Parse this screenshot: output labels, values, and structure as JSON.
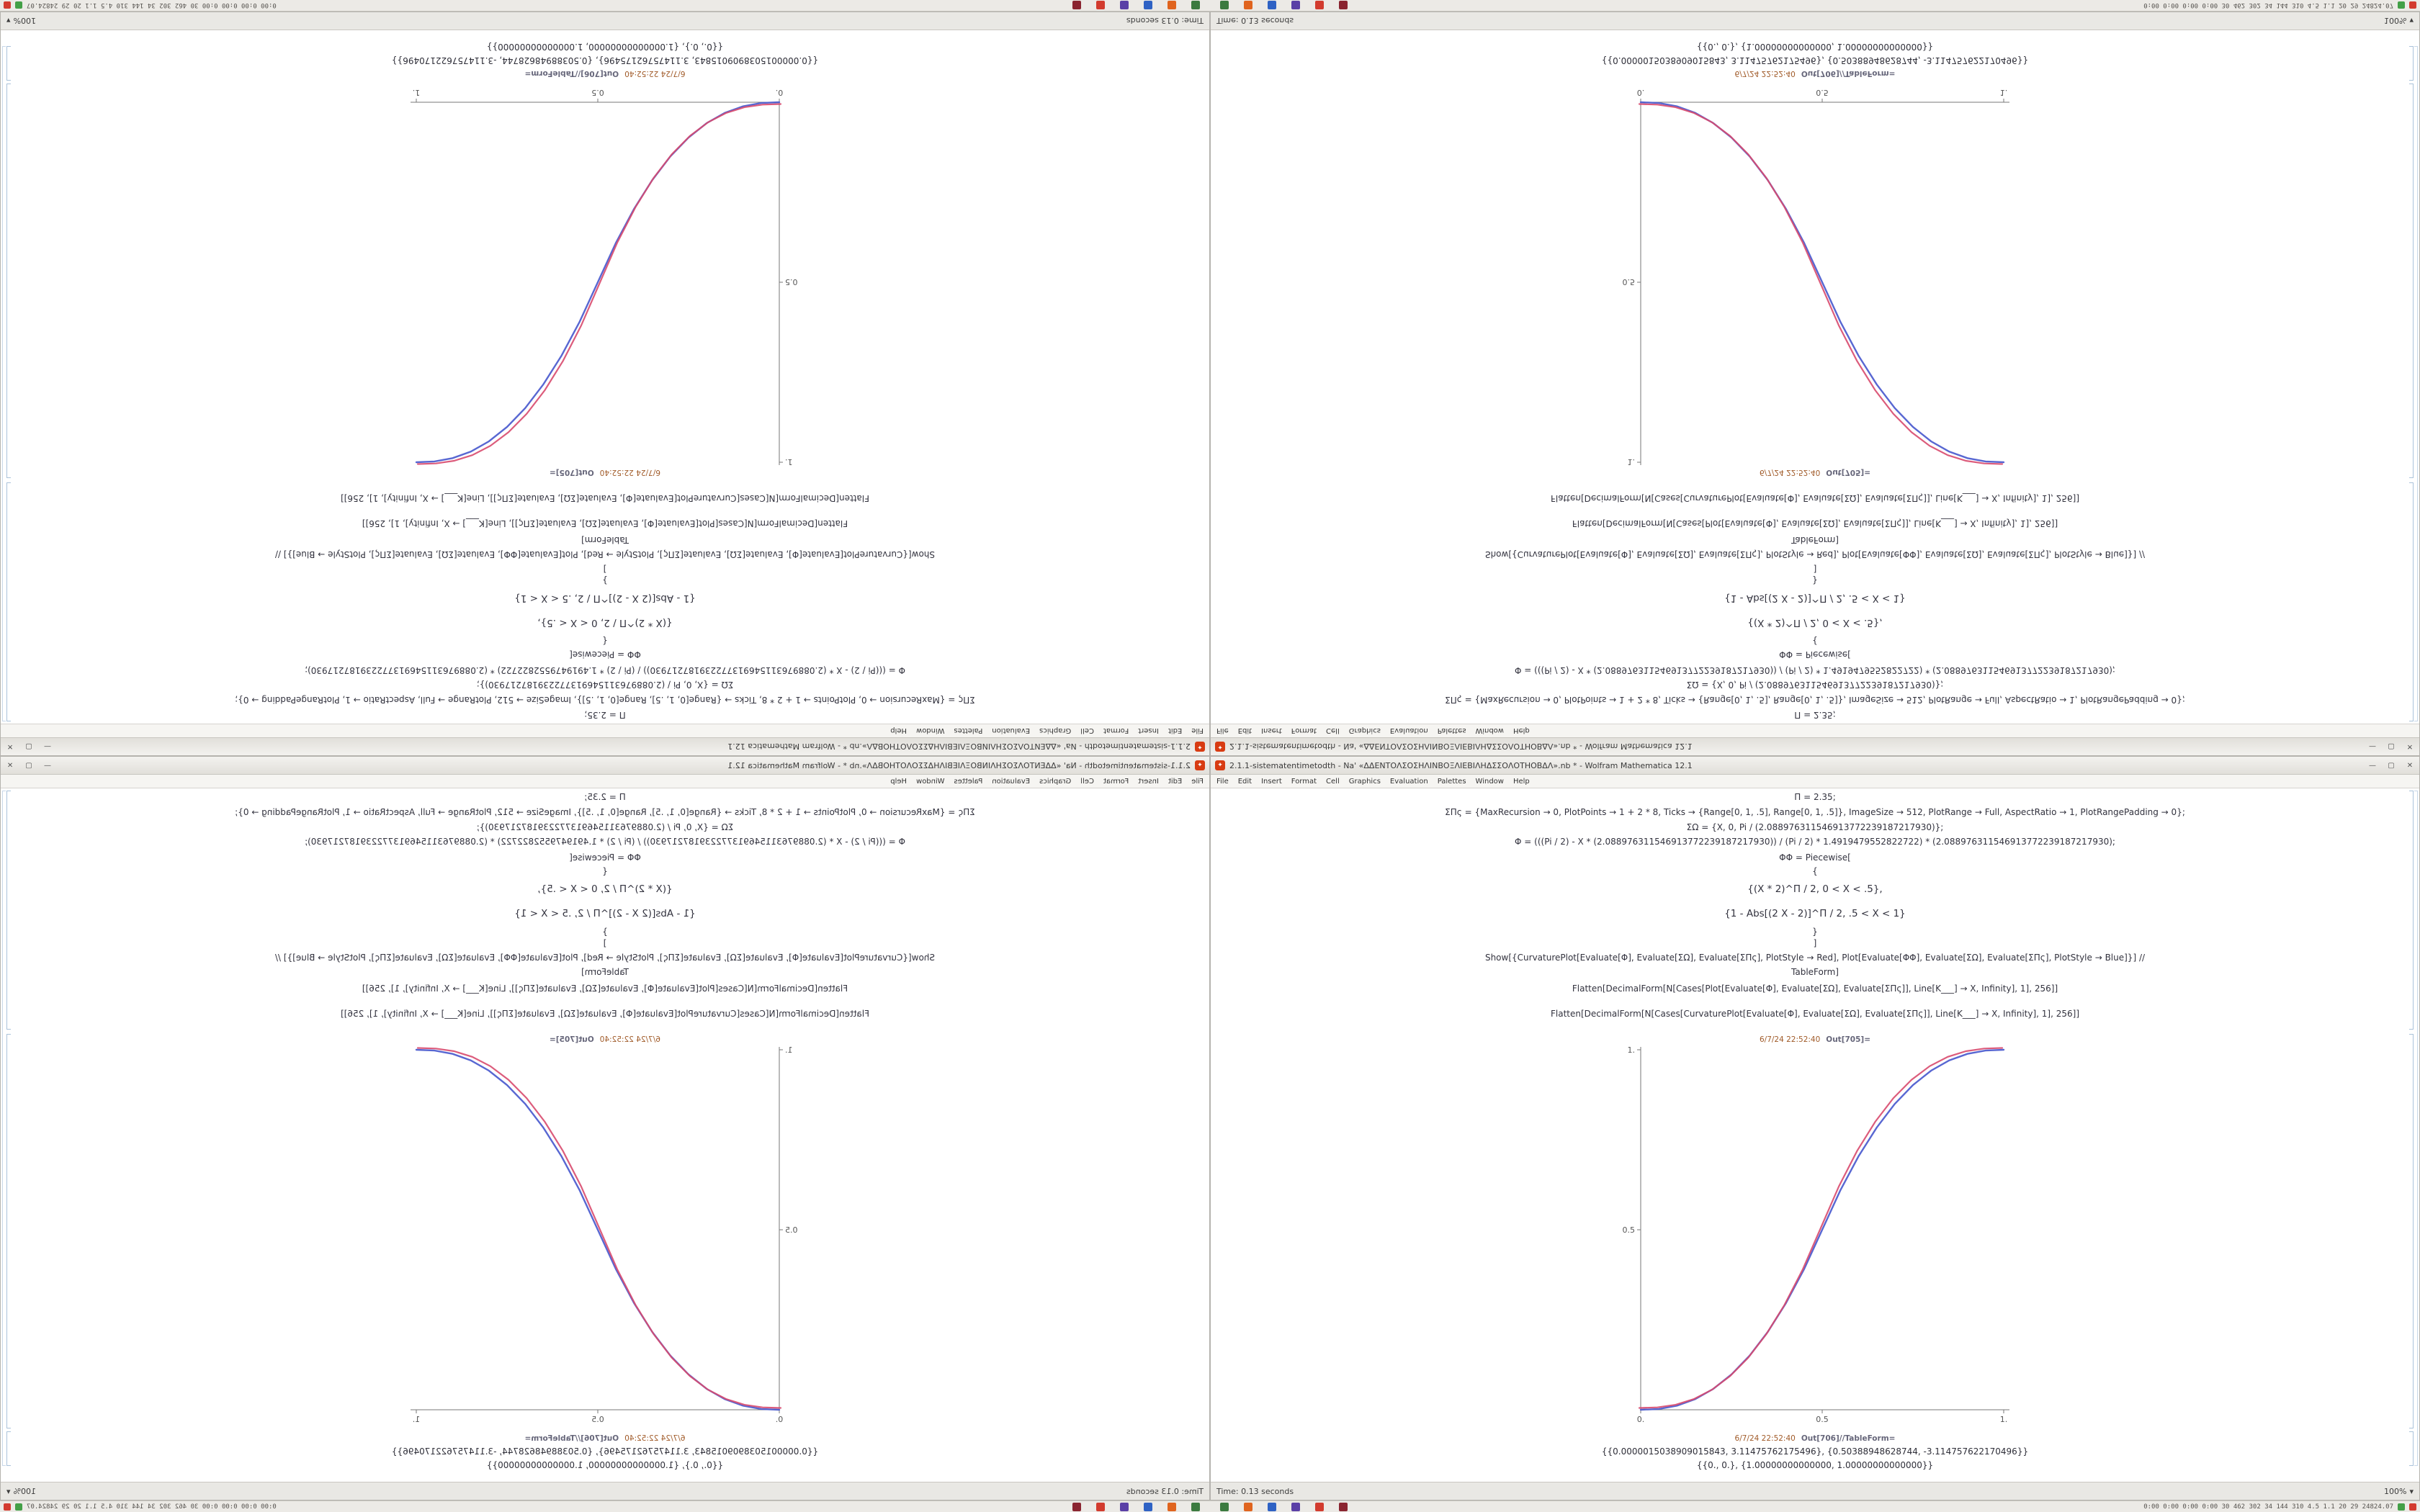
{
  "app": {
    "icon_glyph": "✦",
    "title": "2.1.1-sistematentimetodth - Na' «ΔΔΕΝΤΟΛΣΟΣΗΛΙΝΒΟΞΛΙΕΒΙΛΗΔΣΣΟΛΟΤΗΟΒΔΛ».nb * - Wolfram Mathematica 12.1",
    "menu_items": [
      "File",
      "Edit",
      "Insert",
      "Format",
      "Cell",
      "Graphics",
      "Evaluation",
      "Palettes",
      "Window",
      "Help"
    ],
    "window_buttons": {
      "minimize": "—",
      "maximize": "▢",
      "close": "✕"
    }
  },
  "notebook": {
    "code_lines": [
      "Π = 2.35;",
      "ΣΠς = {MaxRecursion → 0, PlotPoints → 1 + 2 * 8, Ticks → {Range[0, 1, .5], Range[0, 1, .5]}, ImageSize → 512, PlotRange → Full, AspectRatio → 1, PlotRangePadding → 0};",
      "ΣΩ = {X, 0, Pi / (2.088976311546913772239187217930)};",
      "Φ = (((Pi / 2) - X * (2.088976311546913772239187217930)) / (Pi / 2) * 1.4919479552822722) * (2.088976311546913772239187217930);",
      "ΦΦ = Piecewise[",
      "{",
      "{(X * 2)^Π / 2, 0 < X < .5},",
      "{1 - Abs[(2 X - 2)]^Π / 2, .5 < X < 1}",
      "}",
      "]",
      "Show[{CurvaturePlot[Evaluate[Φ], Evaluate[ΣΩ], Evaluate[ΣΠς], PlotStyle → Red], Plot[Evaluate[ΦΦ], Evaluate[ΣΩ], Evaluate[ΣΠς], PlotStyle → Blue]}] //",
      "TableForm]",
      "Flatten[DecimalForm[N[Cases[Plot[Evaluate[Φ], Evaluate[ΣΩ], Evaluate[ΣΠς]], Line[K___] → X, Infinity], 1], 256]]",
      "Flatten[DecimalForm[N[Cases[CurvaturePlot[Evaluate[Φ], Evaluate[ΣΩ], Evaluate[ΣΠς]], Line[K___] → X, Infinity], 1], 256]]"
    ],
    "out1_time": "6/7/24 22:52:40",
    "out1_label": "Out[705]=",
    "out2_time": "6/7/24 22:52:40",
    "out2_label": "Out[706]//TableForm=",
    "result_rows": [
      "{{0.0000015038909015843, 3.11475762175496}, {0.50388948628744, -3.114757622170496}}",
      "{{0., 0.}, {1.00000000000000, 1.00000000000000}}"
    ]
  },
  "status": {
    "left": "Time: 0.13 seconds",
    "zoom": "100%",
    "zoom_caret": "▾"
  },
  "taskbar": {
    "icons": [
      {
        "name": "taskbar-app-icon-1",
        "color": "#3b7a3f"
      },
      {
        "name": "taskbar-app-icon-2",
        "color": "#e0641e"
      },
      {
        "name": "taskbar-app-icon-3",
        "color": "#2f62c4"
      },
      {
        "name": "taskbar-app-icon-4",
        "color": "#5a3fa6"
      },
      {
        "name": "taskbar-app-icon-5",
        "color": "#d23b2e"
      },
      {
        "name": "taskbar-app-icon-6",
        "color": "#8a2430"
      }
    ],
    "tray_text": "0:00 0:00 0:00 0:00 30 462 302 34 144 310 4.5 1.1 20 29 24824.07",
    "tray_icons": [
      {
        "name": "tray-icon-green",
        "color": "#43a047"
      },
      {
        "name": "tray-icon-red",
        "color": "#d33b2f"
      }
    ]
  },
  "chart_data": {
    "type": "line",
    "title": "",
    "xlabel": "",
    "ylabel": "",
    "x": [
      0,
      0.05,
      0.1,
      0.15,
      0.2,
      0.25,
      0.3,
      0.35,
      0.4,
      0.45,
      0.5,
      0.55,
      0.6,
      0.65,
      0.7,
      0.75,
      0.8,
      0.85,
      0.9,
      0.95,
      1
    ],
    "series": [
      {
        "name": "CurvaturePlot (PlotStyle Red)",
        "color": "#d84a6e",
        "values": [
          0,
          0.0016,
          0.0089,
          0.0246,
          0.0506,
          0.0884,
          0.1394,
          0.205,
          0.2862,
          0.3842,
          0.5,
          0.6158,
          0.7138,
          0.795,
          0.8606,
          0.9116,
          0.9494,
          0.9754,
          0.9911,
          0.9984,
          1
        ]
      },
      {
        "name": "Plot ΦΦ (PlotStyle Blue)",
        "color": "#4f5fd0",
        "values": [
          0,
          0.0022,
          0.0114,
          0.0295,
          0.058,
          0.098,
          0.1505,
          0.2163,
          0.296,
          0.3904,
          0.5,
          0.6096,
          0.704,
          0.7837,
          0.8495,
          0.902,
          0.942,
          0.9705,
          0.9886,
          0.9978,
          1
        ]
      }
    ],
    "xlim": [
      0,
      1
    ],
    "ylim": [
      0,
      1
    ],
    "xticks": [
      {
        "v": 0,
        "label": "0."
      },
      {
        "v": 0.5,
        "label": "0.5"
      },
      {
        "v": 1,
        "label": "1."
      }
    ],
    "yticks": [
      {
        "v": 0.5,
        "label": "0.5"
      },
      {
        "v": 1,
        "label": "1."
      }
    ],
    "grid": false,
    "legend": "none",
    "aspect_ratio": 1,
    "image_size": 512
  }
}
